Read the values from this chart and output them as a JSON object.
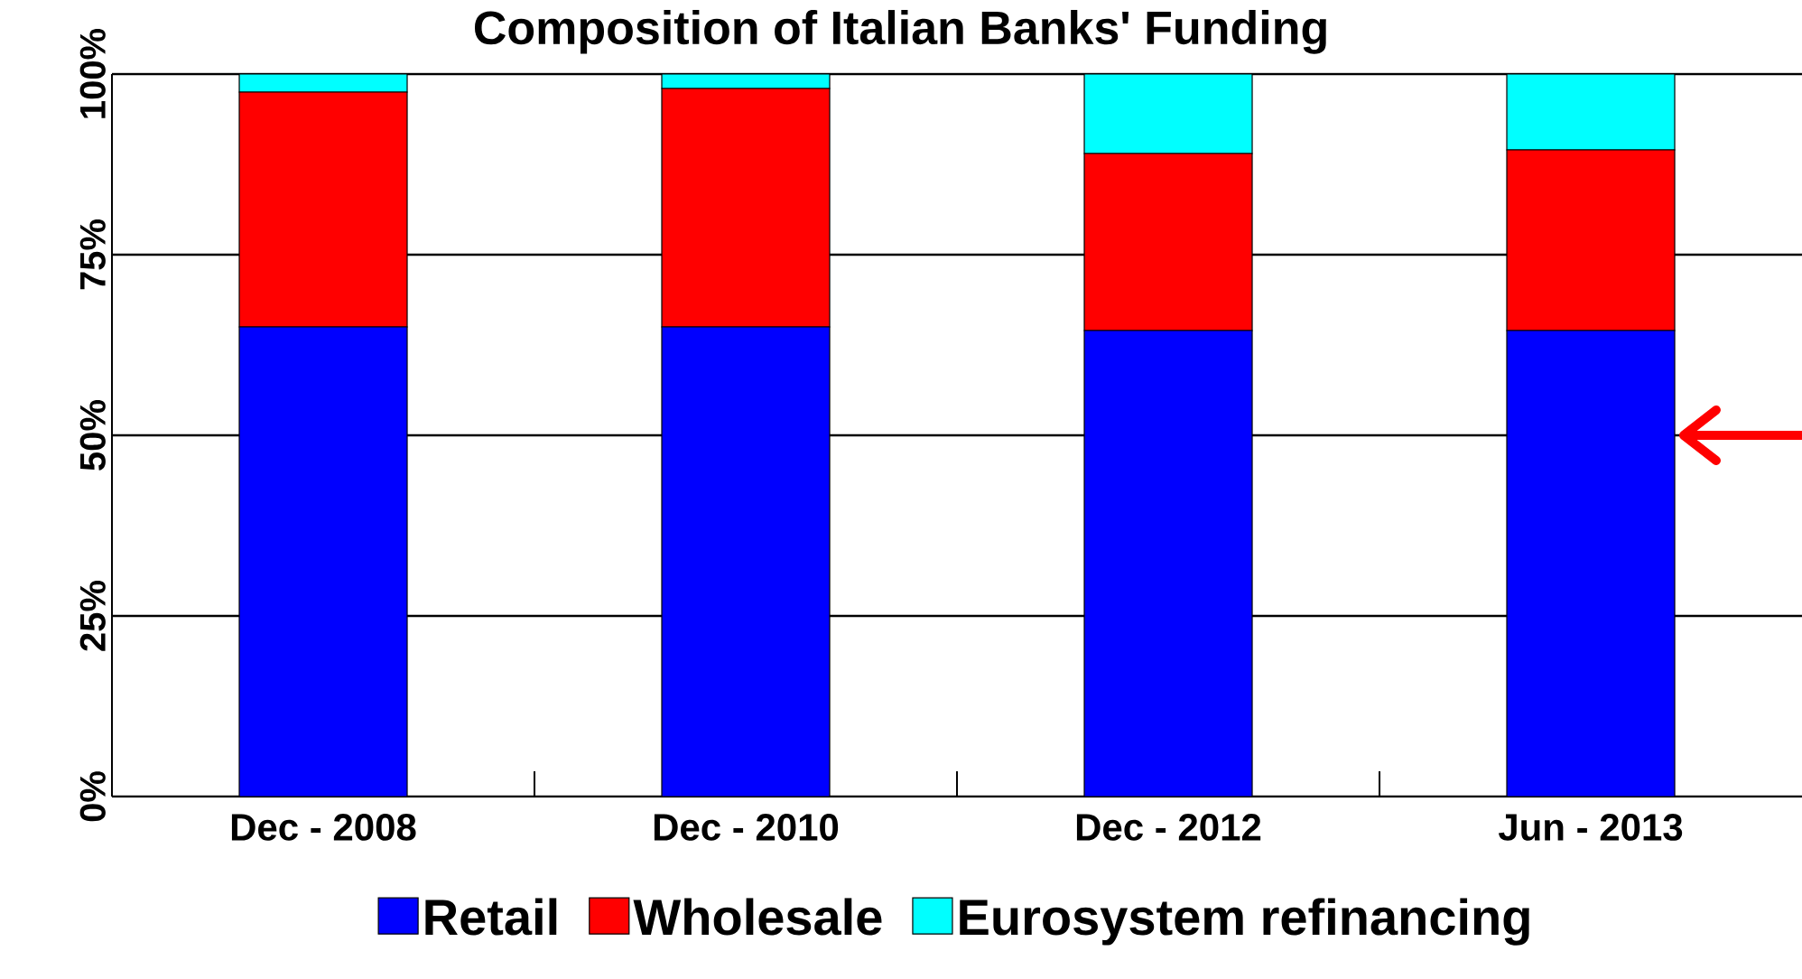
{
  "chart_data": {
    "type": "bar",
    "title": "Composition of Italian Banks' Funding",
    "categories": [
      "Dec - 2008",
      "Dec - 2010",
      "Dec - 2012",
      "Jun - 2013"
    ],
    "stacked": true,
    "series": [
      {
        "name": "Retail",
        "color": "#0000ff",
        "values": [
          65,
          65,
          64.5,
          64.5
        ]
      },
      {
        "name": "Wholesale",
        "color": "#ff0000",
        "values": [
          32.5,
          33,
          24.5,
          25
        ]
      },
      {
        "name": "Eurosystem refinancing",
        "color": "#00ffff",
        "values": [
          2.5,
          2,
          11,
          10.5
        ]
      }
    ],
    "ylim": [
      0,
      100
    ],
    "yticks": [
      {
        "value": 0,
        "label": "0%"
      },
      {
        "value": 25,
        "label": "25%"
      },
      {
        "value": 50,
        "label": "50%"
      },
      {
        "value": 75,
        "label": "75%"
      },
      {
        "value": 100,
        "label": "100%"
      }
    ],
    "grid": "y",
    "legend": "bottom"
  }
}
